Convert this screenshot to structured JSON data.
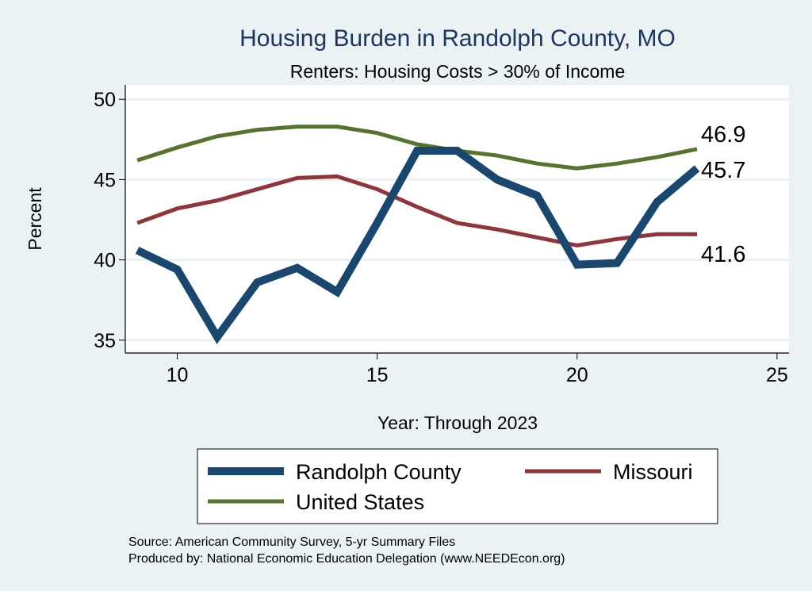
{
  "chart_data": {
    "type": "line",
    "title": "Housing Burden in Randolph County, MO",
    "subtitle": "Renters: Housing Costs > 30% of Income",
    "xlabel": "Year: Through 2023",
    "ylabel": "Percent",
    "xlim": [
      8.7,
      25.3
    ],
    "ylim": [
      34.2,
      50.9
    ],
    "xticks": [
      10,
      15,
      20,
      25
    ],
    "yticks": [
      35,
      40,
      45,
      50
    ],
    "grid": true,
    "legend_position": "bottom",
    "x": [
      9,
      10,
      11,
      12,
      13,
      14,
      15,
      16,
      17,
      18,
      19,
      20,
      21,
      22,
      23
    ],
    "series": [
      {
        "name": "Randolph County",
        "color": "#1a476f",
        "values": [
          40.6,
          39.4,
          35.2,
          38.6,
          39.5,
          38.0,
          42.3,
          46.8,
          46.8,
          45.0,
          44.0,
          39.7,
          39.8,
          43.6,
          45.7
        ],
        "end_label": "45.7"
      },
      {
        "name": "Missouri",
        "color": "#90353b",
        "values": [
          42.3,
          43.2,
          43.7,
          44.4,
          45.1,
          45.2,
          44.4,
          43.3,
          42.3,
          41.9,
          41.4,
          40.9,
          41.3,
          41.6,
          41.6
        ],
        "end_label": "41.6"
      },
      {
        "name": "United States",
        "color": "#55752f",
        "values": [
          46.2,
          47.0,
          47.7,
          48.1,
          48.3,
          48.3,
          47.9,
          47.2,
          46.8,
          46.5,
          46.0,
          45.7,
          46.0,
          46.4,
          46.9
        ],
        "end_label": "46.9"
      }
    ],
    "source": "Source: American Community Survey, 5-yr Summary Files",
    "producer": "Produced by: National Economic Education Delegation (www.NEEDEcon.org)"
  }
}
